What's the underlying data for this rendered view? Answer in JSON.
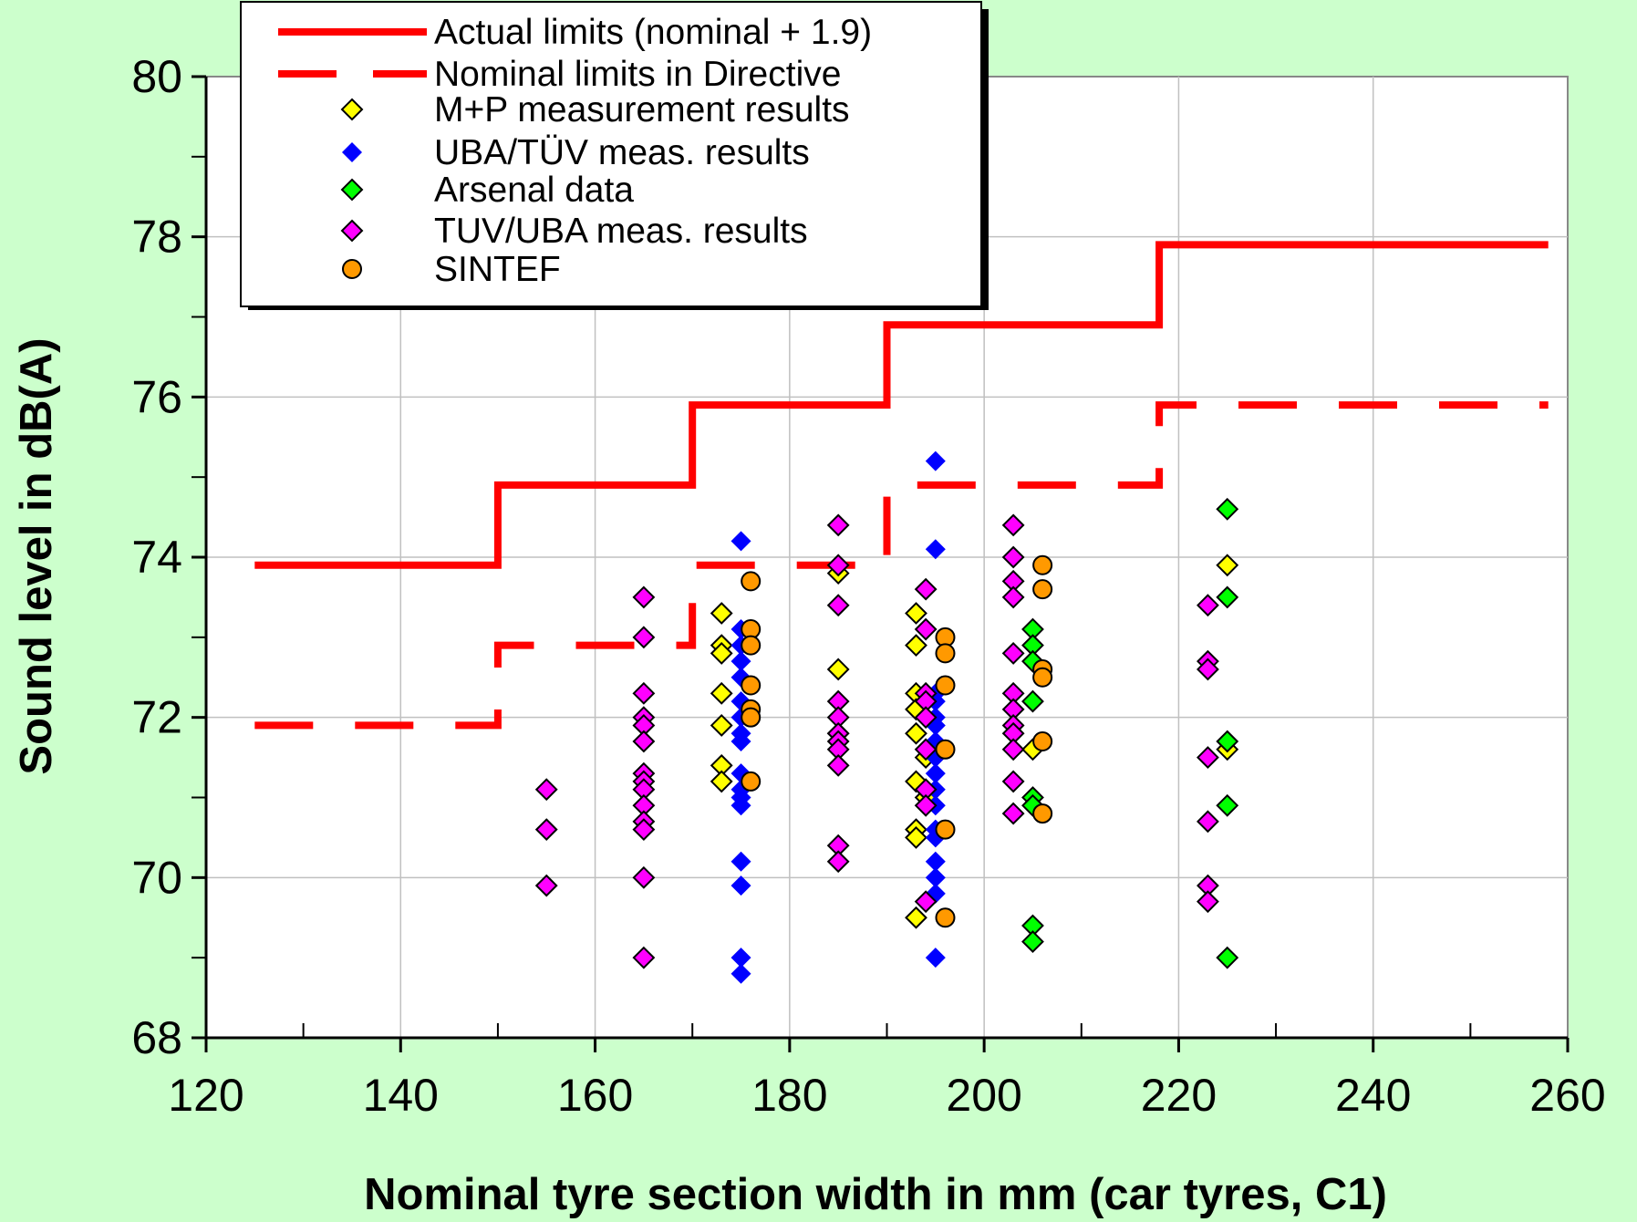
{
  "chart_data": {
    "type": "scatter",
    "title": "",
    "xlabel": "Nominal tyre section width in mm (car tyres, C1)",
    "ylabel": "Sound level in dB(A)",
    "xlim": [
      120,
      260
    ],
    "ylim": [
      68,
      80
    ],
    "x_major_ticks": [
      120,
      140,
      160,
      180,
      200,
      220,
      240,
      260
    ],
    "x_minor_ticks": [
      130,
      150,
      170,
      190,
      210,
      230,
      250
    ],
    "y_major_ticks": [
      68,
      70,
      72,
      74,
      76,
      78,
      80
    ],
    "y_minor_ticks": [
      69,
      71,
      73,
      75,
      77,
      79
    ],
    "grid": true,
    "legend_position": "top-left",
    "lines": [
      {
        "name": "Actual limits (nominal + 1.9)",
        "style": "solid",
        "color": "#ff0000",
        "points": [
          [
            125,
            73.9
          ],
          [
            150,
            73.9
          ],
          [
            150,
            74.9
          ],
          [
            170,
            74.9
          ],
          [
            170,
            75.9
          ],
          [
            190,
            75.9
          ],
          [
            190,
            76.9
          ],
          [
            218,
            76.9
          ],
          [
            218,
            77.9
          ],
          [
            258,
            77.9
          ]
        ]
      },
      {
        "name": "Nominal limits in Directive",
        "style": "dashed",
        "color": "#ff0000",
        "points": [
          [
            125,
            71.9
          ],
          [
            150,
            71.9
          ],
          [
            150,
            72.9
          ],
          [
            170,
            72.9
          ],
          [
            170,
            73.9
          ],
          [
            190,
            73.9
          ],
          [
            190,
            74.9
          ],
          [
            218,
            74.9
          ],
          [
            218,
            75.9
          ],
          [
            258,
            75.9
          ]
        ]
      }
    ],
    "series": [
      {
        "name": "M+P measurement results",
        "marker": "diamond",
        "color": "#ffff00",
        "outline": true,
        "points": [
          [
            173,
            73.3
          ],
          [
            173,
            72.9
          ],
          [
            173,
            72.8
          ],
          [
            173,
            72.3
          ],
          [
            173,
            71.9
          ],
          [
            173,
            71.4
          ],
          [
            173,
            71.2
          ],
          [
            185,
            73.8
          ],
          [
            185,
            72.6
          ],
          [
            185,
            71.8
          ],
          [
            193,
            73.3
          ],
          [
            193,
            72.9
          ],
          [
            193,
            72.3
          ],
          [
            193,
            72.1
          ],
          [
            193,
            71.8
          ],
          [
            193,
            71.2
          ],
          [
            193,
            70.6
          ],
          [
            193,
            70.5
          ],
          [
            193,
            69.5
          ],
          [
            194,
            71.5
          ],
          [
            194,
            71.0
          ],
          [
            205,
            71.6
          ],
          [
            225,
            73.9
          ],
          [
            225,
            71.6
          ]
        ]
      },
      {
        "name": "UBA/TÜV meas. results",
        "marker": "diamond",
        "color": "#0000ff",
        "outline": false,
        "points": [
          [
            175,
            74.2
          ],
          [
            175,
            73.1
          ],
          [
            175,
            72.9
          ],
          [
            175,
            72.7
          ],
          [
            175,
            72.5
          ],
          [
            175,
            72.2
          ],
          [
            175,
            72.0
          ],
          [
            175,
            71.8
          ],
          [
            175,
            71.7
          ],
          [
            175,
            71.3
          ],
          [
            175,
            71.1
          ],
          [
            175,
            71.0
          ],
          [
            175,
            70.9
          ],
          [
            175,
            70.2
          ],
          [
            175,
            69.9
          ],
          [
            175,
            69.0
          ],
          [
            175,
            68.8
          ],
          [
            195,
            75.2
          ],
          [
            195,
            74.1
          ],
          [
            195,
            72.3
          ],
          [
            195,
            72.2
          ],
          [
            195,
            72.0
          ],
          [
            195,
            71.9
          ],
          [
            195,
            71.7
          ],
          [
            195,
            71.5
          ],
          [
            195,
            71.3
          ],
          [
            195,
            71.1
          ],
          [
            195,
            70.9
          ],
          [
            195,
            70.6
          ],
          [
            195,
            70.5
          ],
          [
            195,
            70.2
          ],
          [
            195,
            70.0
          ],
          [
            195,
            69.8
          ],
          [
            195,
            69.0
          ]
        ]
      },
      {
        "name": "Arsenal data",
        "marker": "diamond",
        "color": "#00ff00",
        "outline": true,
        "points": [
          [
            205,
            73.1
          ],
          [
            205,
            72.9
          ],
          [
            205,
            72.7
          ],
          [
            205,
            72.2
          ],
          [
            205,
            71.0
          ],
          [
            205,
            70.9
          ],
          [
            205,
            69.4
          ],
          [
            205,
            69.2
          ],
          [
            225,
            74.6
          ],
          [
            225,
            73.5
          ],
          [
            225,
            71.7
          ],
          [
            225,
            70.9
          ],
          [
            225,
            69.0
          ]
        ]
      },
      {
        "name": "TUV/UBA meas. results",
        "marker": "diamond",
        "color": "#ff00ff",
        "outline": true,
        "points": [
          [
            155,
            71.1
          ],
          [
            155,
            70.6
          ],
          [
            155,
            69.9
          ],
          [
            165,
            73.5
          ],
          [
            165,
            73.0
          ],
          [
            165,
            72.3
          ],
          [
            165,
            72.0
          ],
          [
            165,
            71.9
          ],
          [
            165,
            71.7
          ],
          [
            165,
            71.3
          ],
          [
            165,
            71.2
          ],
          [
            165,
            71.1
          ],
          [
            165,
            70.9
          ],
          [
            165,
            70.7
          ],
          [
            165,
            70.6
          ],
          [
            165,
            70.0
          ],
          [
            165,
            69.0
          ],
          [
            185,
            74.4
          ],
          [
            185,
            73.9
          ],
          [
            185,
            73.4
          ],
          [
            185,
            72.2
          ],
          [
            185,
            72.0
          ],
          [
            185,
            71.8
          ],
          [
            185,
            71.7
          ],
          [
            185,
            71.6
          ],
          [
            185,
            71.4
          ],
          [
            185,
            70.4
          ],
          [
            185,
            70.2
          ],
          [
            194,
            73.6
          ],
          [
            194,
            73.1
          ],
          [
            194,
            72.3
          ],
          [
            194,
            72.2
          ],
          [
            194,
            72.0
          ],
          [
            194,
            71.6
          ],
          [
            194,
            71.1
          ],
          [
            194,
            70.9
          ],
          [
            194,
            69.7
          ],
          [
            203,
            74.4
          ],
          [
            203,
            74.0
          ],
          [
            203,
            73.7
          ],
          [
            203,
            73.5
          ],
          [
            203,
            72.8
          ],
          [
            203,
            72.3
          ],
          [
            203,
            72.1
          ],
          [
            203,
            71.9
          ],
          [
            203,
            71.8
          ],
          [
            203,
            71.6
          ],
          [
            203,
            71.2
          ],
          [
            203,
            70.8
          ],
          [
            223,
            73.4
          ],
          [
            223,
            72.7
          ],
          [
            223,
            72.6
          ],
          [
            223,
            71.5
          ],
          [
            223,
            70.7
          ],
          [
            223,
            69.9
          ],
          [
            223,
            69.7
          ]
        ]
      },
      {
        "name": "SINTEF",
        "marker": "circle",
        "color": "#ff9900",
        "outline": true,
        "points": [
          [
            176,
            73.7
          ],
          [
            176,
            73.1
          ],
          [
            176,
            72.9
          ],
          [
            176,
            72.4
          ],
          [
            176,
            72.1
          ],
          [
            176,
            72.0
          ],
          [
            176,
            71.2
          ],
          [
            196,
            73.0
          ],
          [
            196,
            72.8
          ],
          [
            196,
            72.4
          ],
          [
            196,
            71.6
          ],
          [
            196,
            70.6
          ],
          [
            196,
            69.5
          ],
          [
            206,
            73.9
          ],
          [
            206,
            73.6
          ],
          [
            206,
            72.6
          ],
          [
            206,
            72.5
          ],
          [
            206,
            71.7
          ],
          [
            206,
            70.8
          ]
        ]
      }
    ]
  }
}
